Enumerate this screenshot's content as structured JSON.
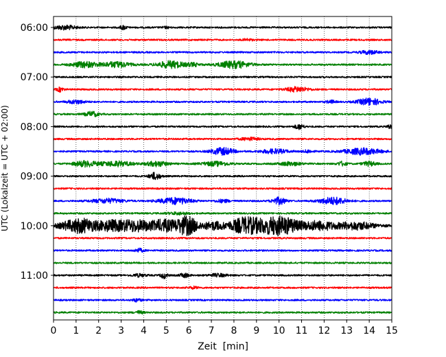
{
  "chart_data": {
    "type": "line",
    "subtype": "helicorder",
    "xlabel": "Zeit  [min]",
    "ylabel": "UTC (Lokalzeit = UTC + 02:00)",
    "xlim": [
      0,
      15
    ],
    "x_ticks": [
      "0",
      "1",
      "2",
      "3",
      "4",
      "5",
      "6",
      "7",
      "8",
      "9",
      "10",
      "11",
      "12",
      "13",
      "14",
      "15"
    ],
    "y_ticks": [
      "06:00",
      "07:00",
      "08:00",
      "09:00",
      "10:00",
      "11:00"
    ],
    "grid": "vertical dotted at each minute",
    "trace_interval_min": 15,
    "trace_colors": [
      "#000000",
      "#ff0000",
      "#0000ff",
      "#008000"
    ],
    "traces": [
      {
        "start": "06:00",
        "color": "#000000",
        "amp": 2,
        "events": [
          [
            0.5,
            0.5,
            3
          ],
          [
            3.1,
            0.15,
            3
          ],
          [
            5.0,
            0.2,
            1
          ]
        ]
      },
      {
        "start": "06:15",
        "color": "#ff0000",
        "amp": 2,
        "events": [
          [
            8.6,
            0.2,
            1.5
          ]
        ]
      },
      {
        "start": "06:30",
        "color": "#0000ff",
        "amp": 2,
        "events": [
          [
            14.0,
            0.4,
            2.5
          ]
        ]
      },
      {
        "start": "06:45",
        "color": "#008000",
        "amp": 2,
        "events": [
          [
            1.4,
            0.6,
            4
          ],
          [
            2.8,
            0.6,
            4
          ],
          [
            5.2,
            0.6,
            5
          ],
          [
            8.0,
            0.7,
            5
          ],
          [
            6.2,
            0.3,
            2
          ]
        ]
      },
      {
        "start": "07:00",
        "color": "#000000",
        "amp": 2,
        "events": []
      },
      {
        "start": "07:15",
        "color": "#ff0000",
        "amp": 2,
        "events": [
          [
            0.3,
            0.15,
            3
          ],
          [
            10.8,
            0.5,
            3.5
          ]
        ]
      },
      {
        "start": "07:30",
        "color": "#0000ff",
        "amp": 2,
        "events": [
          [
            1.0,
            0.4,
            2.5
          ],
          [
            14.0,
            0.5,
            5
          ],
          [
            12.3,
            0.2,
            2
          ]
        ]
      },
      {
        "start": "07:45",
        "color": "#008000",
        "amp": 2,
        "events": [
          [
            1.7,
            0.3,
            3.5
          ]
        ]
      },
      {
        "start": "08:00",
        "color": "#000000",
        "amp": 2,
        "events": [
          [
            10.9,
            0.2,
            3.5
          ],
          [
            14.9,
            0.1,
            3
          ]
        ]
      },
      {
        "start": "08:15",
        "color": "#ff0000",
        "amp": 2,
        "events": [
          [
            8.7,
            0.4,
            2
          ]
        ]
      },
      {
        "start": "08:30",
        "color": "#0000ff",
        "amp": 2,
        "events": [
          [
            7.5,
            0.5,
            5
          ],
          [
            9.8,
            0.6,
            3
          ],
          [
            13.7,
            0.8,
            4.5
          ],
          [
            11.3,
            0.2,
            2
          ]
        ]
      },
      {
        "start": "08:45",
        "color": "#008000",
        "amp": 2,
        "events": [
          [
            1.4,
            0.5,
            4
          ],
          [
            2.8,
            0.7,
            3.5
          ],
          [
            4.6,
            0.5,
            3.5
          ],
          [
            7.2,
            0.6,
            3
          ],
          [
            10.5,
            0.5,
            2.5
          ],
          [
            12.8,
            0.2,
            3
          ],
          [
            14.0,
            0.3,
            3
          ]
        ]
      },
      {
        "start": "09:00",
        "color": "#000000",
        "amp": 2,
        "events": [
          [
            4.5,
            0.25,
            5
          ]
        ]
      },
      {
        "start": "09:15",
        "color": "#ff0000",
        "amp": 2,
        "events": []
      },
      {
        "start": "09:30",
        "color": "#0000ff",
        "amp": 2,
        "events": [
          [
            2.4,
            0.7,
            3
          ],
          [
            5.4,
            0.7,
            4.5
          ],
          [
            10.0,
            0.3,
            5
          ],
          [
            12.4,
            0.6,
            5
          ],
          [
            7.5,
            0.3,
            2
          ]
        ]
      },
      {
        "start": "09:45",
        "color": "#008000",
        "amp": 2,
        "events": [
          [
            5.5,
            0.5,
            1.5
          ]
        ]
      },
      {
        "start": "10:00",
        "color": "#000000",
        "amp": 3,
        "events": [
          [
            1.2,
            0.8,
            10
          ],
          [
            2.5,
            0.5,
            5
          ],
          [
            3.6,
            0.9,
            8
          ],
          [
            4.9,
            0.5,
            7
          ],
          [
            5.9,
            0.5,
            13
          ],
          [
            7.1,
            0.5,
            5
          ],
          [
            8.5,
            0.7,
            11
          ],
          [
            10.0,
            0.9,
            13
          ],
          [
            11.8,
            0.7,
            6
          ],
          [
            13.4,
            0.8,
            5
          ]
        ]
      },
      {
        "start": "10:15",
        "color": "#ff0000",
        "amp": 2,
        "events": []
      },
      {
        "start": "10:30",
        "color": "#0000ff",
        "amp": 2,
        "events": [
          [
            3.8,
            0.2,
            2.5
          ]
        ]
      },
      {
        "start": "10:45",
        "color": "#008000",
        "amp": 2,
        "events": []
      },
      {
        "start": "11:00",
        "color": "#000000",
        "amp": 2,
        "events": [
          [
            4.9,
            0.15,
            4
          ],
          [
            5.8,
            0.2,
            3
          ],
          [
            7.3,
            0.4,
            2
          ],
          [
            3.8,
            0.3,
            2
          ]
        ]
      },
      {
        "start": "11:15",
        "color": "#ff0000",
        "amp": 2,
        "events": [
          [
            6.2,
            0.2,
            1.5
          ]
        ]
      },
      {
        "start": "11:30",
        "color": "#0000ff",
        "amp": 2,
        "events": [
          [
            3.7,
            0.2,
            2
          ]
        ]
      },
      {
        "start": "11:45",
        "color": "#008000",
        "amp": 2,
        "events": [
          [
            3.8,
            0.2,
            2
          ]
        ]
      }
    ]
  }
}
